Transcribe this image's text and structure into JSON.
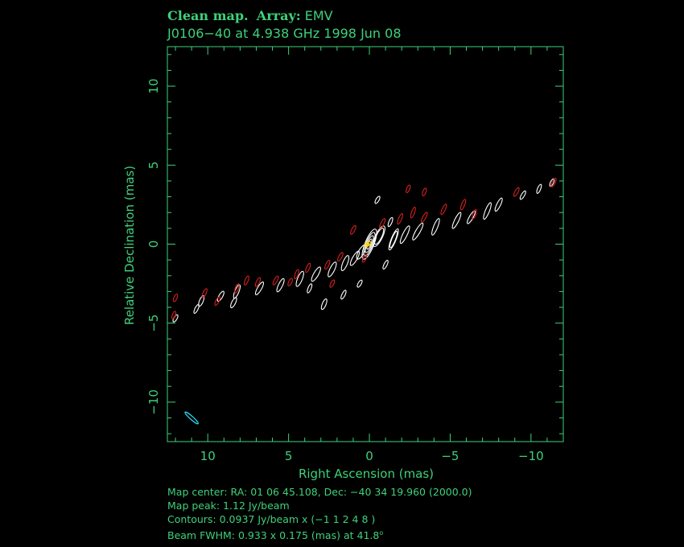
{
  "header": {
    "label_clean": "Clean map.",
    "label_array": "Array:",
    "array_value": "EMV",
    "subtitle": "J0106−40 at 4.938 GHz 1998 Jun 08"
  },
  "chart_data": {
    "type": "contour",
    "xlabel": "Right Ascension   (mas)",
    "ylabel": "Relative Declination   (mas)",
    "xlim": [
      12.5,
      -12
    ],
    "ylim": [
      -12.5,
      12.5
    ],
    "x_ticks": [
      10,
      5,
      0,
      -5,
      -10
    ],
    "x_tick_labels": [
      "10",
      "5",
      "0",
      "−5",
      "−10"
    ],
    "y_ticks": [
      10,
      5,
      0,
      -5,
      -10
    ],
    "y_tick_labels": [
      "10",
      "5",
      "0",
      "−5",
      "−10"
    ],
    "contour_levels_relative": [
      -1,
      1,
      2,
      4,
      8
    ],
    "lowest_contour_jy_per_beam": 0.0937,
    "peak_jy_per_beam": 1.12,
    "colors": {
      "frame": "#3ed17a",
      "positive": "#ffffff",
      "negative": "#d42020",
      "peak": "#ffd700",
      "beam": "#22d3e6"
    },
    "positive_components": [
      [
        0,
        0,
        1.0,
        0.28
      ],
      [
        -0.6,
        0.5,
        0.7,
        0.22
      ],
      [
        0.5,
        -0.5,
        0.5,
        0.18
      ],
      [
        -1.5,
        0.3,
        0.7,
        0.15
      ],
      [
        -2.2,
        0.6,
        0.6,
        0.14
      ],
      [
        -3.0,
        0.8,
        0.6,
        0.14
      ],
      [
        -4.1,
        1.1,
        0.55,
        0.13
      ],
      [
        -5.4,
        1.5,
        0.55,
        0.13
      ],
      [
        -6.3,
        1.7,
        0.45,
        0.12
      ],
      [
        -7.3,
        2.1,
        0.55,
        0.13
      ],
      [
        -8.0,
        2.5,
        0.45,
        0.12
      ],
      [
        -9.5,
        3.1,
        0.3,
        0.1
      ],
      [
        -10.5,
        3.5,
        0.3,
        0.1
      ],
      [
        -11.3,
        3.9,
        0.25,
        0.1
      ],
      [
        0.9,
        -0.9,
        0.5,
        0.15
      ],
      [
        1.5,
        -1.2,
        0.5,
        0.15
      ],
      [
        2.3,
        -1.6,
        0.5,
        0.15
      ],
      [
        3.3,
        -1.9,
        0.5,
        0.15
      ],
      [
        4.3,
        -2.2,
        0.5,
        0.15
      ],
      [
        5.5,
        -2.6,
        0.45,
        0.13
      ],
      [
        6.8,
        -2.8,
        0.45,
        0.13
      ],
      [
        8.2,
        -3.0,
        0.45,
        0.13
      ],
      [
        8.4,
        -3.7,
        0.35,
        0.12
      ],
      [
        9.2,
        -3.3,
        0.35,
        0.12
      ],
      [
        10.4,
        -3.6,
        0.35,
        0.12
      ],
      [
        10.7,
        -4.1,
        0.3,
        0.1
      ],
      [
        12.0,
        -4.7,
        0.25,
        0.1
      ],
      [
        2.8,
        -3.8,
        0.35,
        0.12
      ],
      [
        1.6,
        -3.2,
        0.3,
        0.1
      ],
      [
        0.6,
        -2.5,
        0.25,
        0.1
      ],
      [
        3.7,
        -2.8,
        0.3,
        0.1
      ],
      [
        -1.0,
        -1.3,
        0.3,
        0.1
      ],
      [
        -0.5,
        2.8,
        0.25,
        0.1
      ],
      [
        -1.3,
        1.4,
        0.3,
        0.1
      ]
    ],
    "negative_components": [
      [
        1.0,
        0.9,
        0.3,
        0.1
      ],
      [
        -0.8,
        1.3,
        0.35,
        0.1
      ],
      [
        -1.9,
        1.6,
        0.35,
        0.1
      ],
      [
        -2.7,
        2.0,
        0.35,
        0.1
      ],
      [
        -3.4,
        1.7,
        0.35,
        0.1
      ],
      [
        -4.6,
        2.2,
        0.35,
        0.1
      ],
      [
        -5.8,
        2.5,
        0.35,
        0.1
      ],
      [
        -6.5,
        1.9,
        0.3,
        0.1
      ],
      [
        -9.1,
        3.3,
        0.3,
        0.1
      ],
      [
        -11.4,
        3.9,
        0.3,
        0.1
      ],
      [
        -2.4,
        3.5,
        0.25,
        0.1
      ],
      [
        -3.4,
        3.3,
        0.25,
        0.1
      ],
      [
        1.8,
        -0.8,
        0.3,
        0.1
      ],
      [
        2.6,
        -1.3,
        0.3,
        0.1
      ],
      [
        3.8,
        -1.5,
        0.3,
        0.1
      ],
      [
        4.5,
        -1.9,
        0.3,
        0.1
      ],
      [
        5.8,
        -2.3,
        0.3,
        0.1
      ],
      [
        6.9,
        -2.4,
        0.3,
        0.1
      ],
      [
        7.6,
        -2.3,
        0.3,
        0.1
      ],
      [
        8.2,
        -2.8,
        0.3,
        0.1
      ],
      [
        9.4,
        -3.6,
        0.3,
        0.1
      ],
      [
        10.2,
        -3.1,
        0.3,
        0.1
      ],
      [
        12.0,
        -3.4,
        0.25,
        0.1
      ],
      [
        12.1,
        -4.5,
        0.25,
        0.1
      ],
      [
        2.3,
        -2.5,
        0.25,
        0.1
      ],
      [
        4.9,
        -2.4,
        0.25,
        0.1
      ],
      [
        0.3,
        -0.9,
        0.25,
        0.1
      ]
    ],
    "peak_marker": [
      0.1,
      0.0
    ],
    "beam": {
      "center_mas": [
        11.0,
        -11.0
      ],
      "major_mas": 0.933,
      "minor_mas": 0.175,
      "pa_deg": 41.8
    }
  },
  "footer": {
    "map_center": "Map center:  RA: 01 06 45.108,  Dec: −40 34 19.960 (2000.0)",
    "map_peak": "Map peak: 1.12 Jy/beam",
    "contours": "Contours: 0.0937 Jy/beam x (−1 1 2 4 8 )",
    "beam_fwhm_prefix": "Beam FWHM: 0.933 x 0.175 (mas) at 41.8",
    "degree_symbol": "o"
  }
}
